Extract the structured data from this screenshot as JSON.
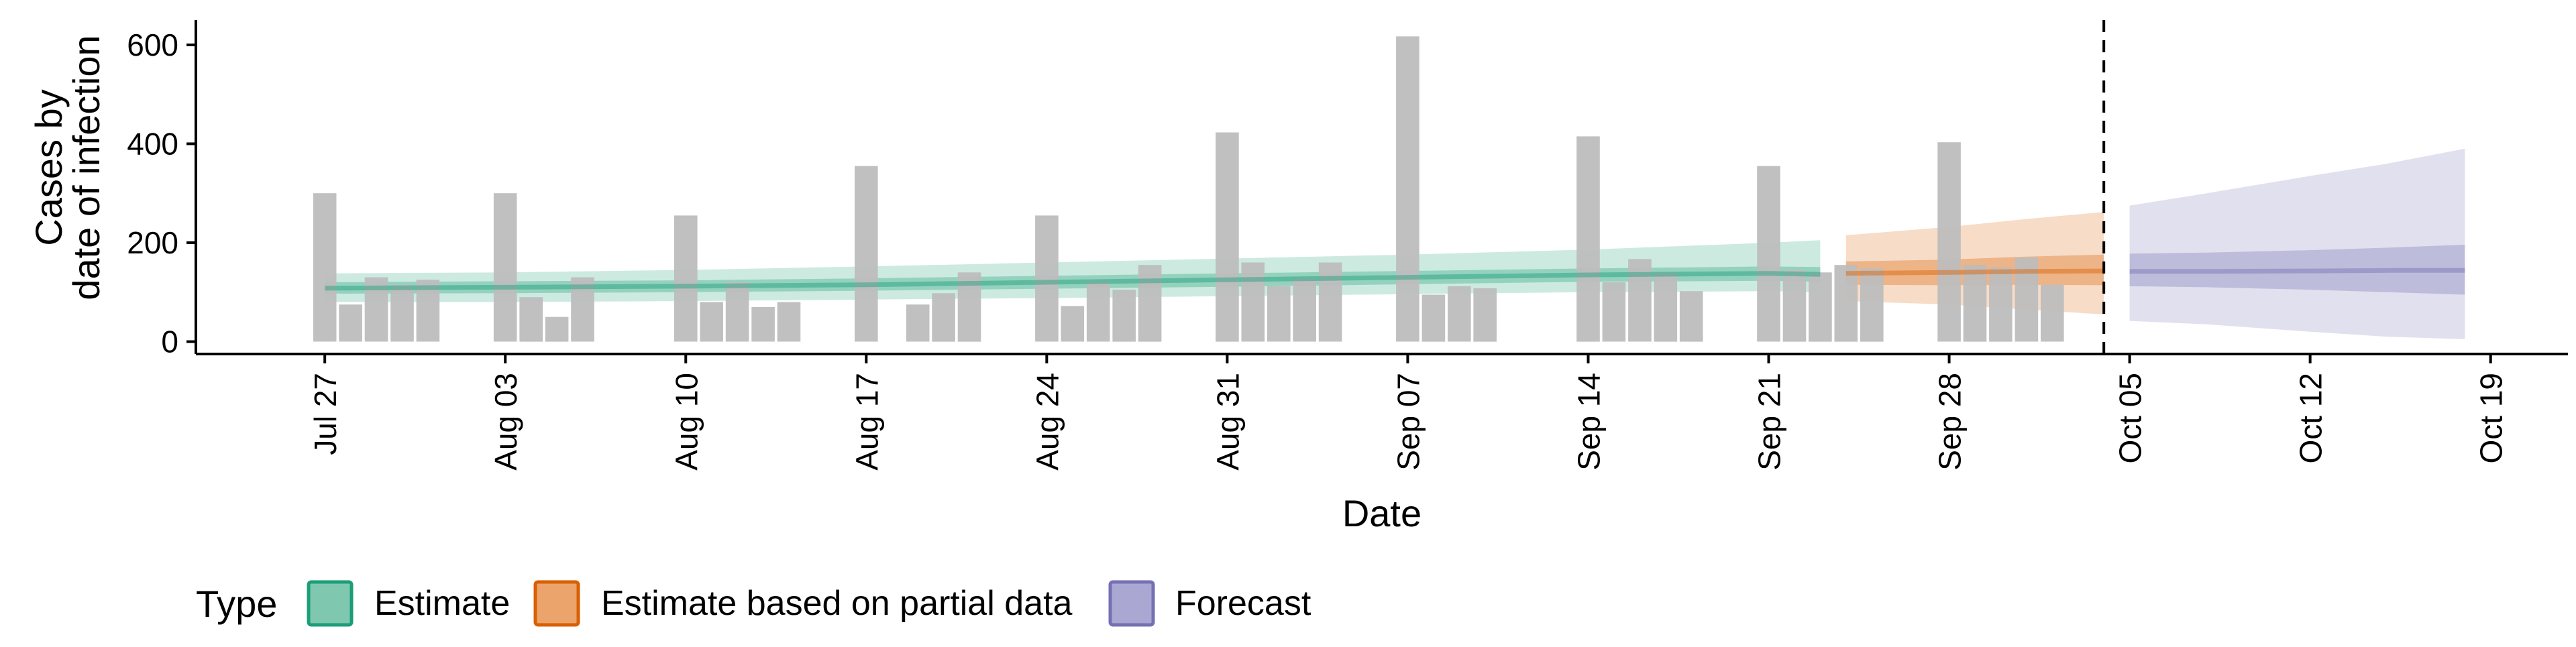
{
  "chart_data": {
    "type": "bar",
    "xlabel": "Date",
    "ylabel_lines": [
      "Cases by",
      "date of infection"
    ],
    "ylim": [
      -25,
      650
    ],
    "y_ticks": [
      0,
      200,
      400,
      600
    ],
    "x_range": [
      "2020-07-22",
      "2020-10-22"
    ],
    "x_ticks": [
      {
        "date": "2020-07-27",
        "label": "Jul 27"
      },
      {
        "date": "2020-08-03",
        "label": "Aug 03"
      },
      {
        "date": "2020-08-10",
        "label": "Aug 10"
      },
      {
        "date": "2020-08-17",
        "label": "Aug 17"
      },
      {
        "date": "2020-08-24",
        "label": "Aug 24"
      },
      {
        "date": "2020-08-31",
        "label": "Aug 31"
      },
      {
        "date": "2020-09-07",
        "label": "Sep 07"
      },
      {
        "date": "2020-09-14",
        "label": "Sep 14"
      },
      {
        "date": "2020-09-21",
        "label": "Sep 21"
      },
      {
        "date": "2020-09-28",
        "label": "Sep 28"
      },
      {
        "date": "2020-10-05",
        "label": "Oct 05"
      },
      {
        "date": "2020-10-12",
        "label": "Oct 12"
      },
      {
        "date": "2020-10-19",
        "label": "Oct 19"
      }
    ],
    "forecast_start": "2020-10-04",
    "bars": {
      "color": "#bdbdbd",
      "x": [
        "2020-07-27",
        "2020-07-28",
        "2020-07-29",
        "2020-07-30",
        "2020-07-31",
        "2020-08-03",
        "2020-08-04",
        "2020-08-05",
        "2020-08-06",
        "2020-08-07",
        "2020-08-10",
        "2020-08-11",
        "2020-08-12",
        "2020-08-13",
        "2020-08-14",
        "2020-08-17",
        "2020-08-19",
        "2020-08-20",
        "2020-08-21",
        "2020-08-24",
        "2020-08-25",
        "2020-08-26",
        "2020-08-27",
        "2020-08-28",
        "2020-08-31",
        "2020-09-01",
        "2020-09-02",
        "2020-09-03",
        "2020-09-04",
        "2020-09-07",
        "2020-09-08",
        "2020-09-09",
        "2020-09-10",
        "2020-09-14",
        "2020-09-15",
        "2020-09-16",
        "2020-09-17",
        "2020-09-18",
        "2020-09-21",
        "2020-09-22",
        "2020-09-23",
        "2020-09-24",
        "2020-09-25",
        "2020-09-28",
        "2020-09-29",
        "2020-09-30",
        "2020-10-01",
        "2020-10-02"
      ],
      "y": [
        300,
        75,
        130,
        115,
        125,
        300,
        90,
        50,
        130,
        0,
        255,
        80,
        120,
        70,
        80,
        355,
        75,
        98,
        140,
        255,
        72,
        122,
        105,
        155,
        423,
        160,
        112,
        128,
        160,
        617,
        95,
        112,
        108,
        415,
        120,
        167,
        140,
        102,
        355,
        145,
        140,
        155,
        148,
        403,
        155,
        150,
        170,
        115
      ]
    },
    "series": [
      {
        "name": "Estimate",
        "color": "#1b9e77",
        "x": [
          "2020-07-27",
          "2020-08-03",
          "2020-08-10",
          "2020-08-17",
          "2020-08-24",
          "2020-08-31",
          "2020-09-07",
          "2020-09-14",
          "2020-09-21",
          "2020-09-23"
        ],
        "median": [
          108,
          110,
          112,
          115,
          120,
          125,
          130,
          135,
          138,
          136
        ],
        "inner_low": [
          97,
          98,
          100,
          103,
          107,
          111,
          116,
          121,
          123,
          121
        ],
        "inner_high": [
          120,
          122,
          124,
          128,
          133,
          138,
          143,
          148,
          152,
          151
        ],
        "outer_low": [
          80,
          80,
          82,
          85,
          88,
          92,
          96,
          100,
          102,
          100
        ],
        "outer_high": [
          138,
          140,
          145,
          152,
          160,
          168,
          176,
          186,
          200,
          205
        ]
      },
      {
        "name": "Estimate based on partial data",
        "color": "#d95f02",
        "x": [
          "2020-09-24",
          "2020-09-28",
          "2020-10-01",
          "2020-10-04"
        ],
        "median": [
          138,
          140,
          142,
          143
        ],
        "inner_low": [
          115,
          114,
          115,
          114
        ],
        "inner_high": [
          162,
          166,
          172,
          176
        ],
        "outer_low": [
          82,
          75,
          65,
          55
        ],
        "outer_high": [
          215,
          232,
          248,
          262
        ]
      },
      {
        "name": "Forecast",
        "color": "#7570b3",
        "x": [
          "2020-10-05",
          "2020-10-08",
          "2020-10-12",
          "2020-10-15",
          "2020-10-18"
        ],
        "median": [
          142,
          142,
          143,
          144,
          144
        ],
        "inner_low": [
          112,
          110,
          105,
          100,
          95
        ],
        "inner_high": [
          178,
          180,
          185,
          190,
          196
        ],
        "outer_low": [
          42,
          35,
          20,
          10,
          5
        ],
        "outer_high": [
          275,
          300,
          335,
          360,
          390
        ]
      }
    ],
    "legend": {
      "title": "Type",
      "position": "bottom",
      "items": [
        {
          "label": "Estimate",
          "color": "#1b9e77"
        },
        {
          "label": "Estimate based on partial data",
          "color": "#d95f02"
        },
        {
          "label": "Forecast",
          "color": "#7570b3"
        }
      ]
    }
  }
}
